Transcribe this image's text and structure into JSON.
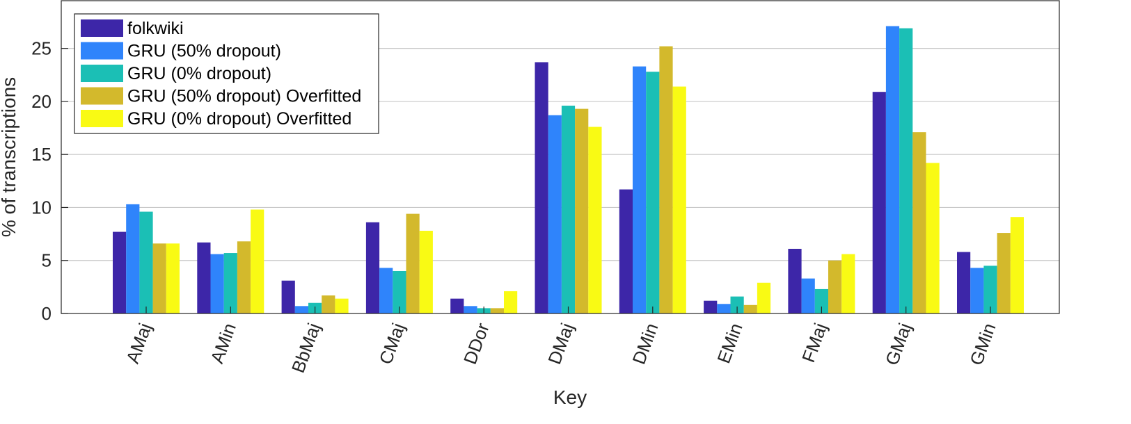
{
  "chart_data": {
    "type": "bar",
    "title": "",
    "xlabel": "Key",
    "ylabel": "% of transcriptions",
    "categories": [
      "AMaj",
      "AMin",
      "BbMaj",
      "CMaj",
      "DDor",
      "DMaj",
      "DMin",
      "EMin",
      "FMaj",
      "GMaj",
      "GMin"
    ],
    "yticks": [
      "0",
      "5",
      "10",
      "15",
      "20",
      "25"
    ],
    "ylim": [
      0,
      29.5
    ],
    "grid": true,
    "legend_position": "top-left",
    "series": [
      {
        "name": "folkwiki",
        "color": "#3d26a8",
        "values": [
          7.7,
          6.7,
          3.1,
          8.6,
          1.4,
          23.7,
          11.7,
          1.2,
          6.1,
          20.9,
          5.8
        ]
      },
      {
        "name": "GRU (50% dropout)",
        "color": "#2f84fb",
        "values": [
          10.3,
          5.6,
          0.7,
          4.3,
          0.7,
          18.7,
          23.3,
          0.9,
          3.3,
          27.1,
          4.3
        ]
      },
      {
        "name": "GRU (0% dropout)",
        "color": "#1bbfb5",
        "values": [
          9.6,
          5.7,
          1.0,
          4.0,
          0.5,
          19.6,
          22.8,
          1.6,
          2.3,
          26.9,
          4.5
        ]
      },
      {
        "name": "GRU (50% dropout) Overfitted",
        "color": "#d3b92c",
        "values": [
          6.6,
          6.8,
          1.7,
          9.4,
          0.5,
          19.3,
          25.2,
          0.8,
          5.0,
          17.1,
          7.6
        ]
      },
      {
        "name": "GRU (0% dropout) Overfitted",
        "color": "#f9fa14",
        "values": [
          6.6,
          9.8,
          1.4,
          7.8,
          2.1,
          17.6,
          21.4,
          2.9,
          5.6,
          14.2,
          9.1
        ]
      }
    ]
  }
}
